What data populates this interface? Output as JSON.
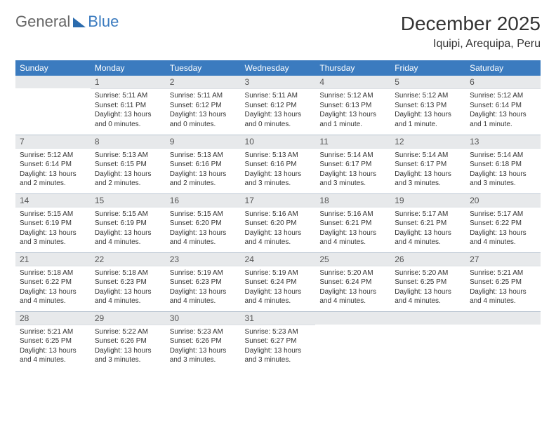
{
  "brand": {
    "part1": "General",
    "part2": "Blue"
  },
  "title": "December 2025",
  "location": "Iquipi, Arequipa, Peru",
  "colors": {
    "header_bg": "#3b7bbf",
    "header_text": "#ffffff",
    "daynum_bg": "#e7e9eb",
    "row_divider": "#b8c4d0",
    "text": "#333333",
    "brand_gray": "#666666",
    "brand_blue": "#3b7bbf",
    "page_bg": "#ffffff"
  },
  "weekdays": [
    "Sunday",
    "Monday",
    "Tuesday",
    "Wednesday",
    "Thursday",
    "Friday",
    "Saturday"
  ],
  "weeks": [
    [
      null,
      {
        "n": "1",
        "sr": "5:11 AM",
        "ss": "6:11 PM",
        "dl": "13 hours and 0 minutes."
      },
      {
        "n": "2",
        "sr": "5:11 AM",
        "ss": "6:12 PM",
        "dl": "13 hours and 0 minutes."
      },
      {
        "n": "3",
        "sr": "5:11 AM",
        "ss": "6:12 PM",
        "dl": "13 hours and 0 minutes."
      },
      {
        "n": "4",
        "sr": "5:12 AM",
        "ss": "6:13 PM",
        "dl": "13 hours and 1 minute."
      },
      {
        "n": "5",
        "sr": "5:12 AM",
        "ss": "6:13 PM",
        "dl": "13 hours and 1 minute."
      },
      {
        "n": "6",
        "sr": "5:12 AM",
        "ss": "6:14 PM",
        "dl": "13 hours and 1 minute."
      }
    ],
    [
      {
        "n": "7",
        "sr": "5:12 AM",
        "ss": "6:14 PM",
        "dl": "13 hours and 2 minutes."
      },
      {
        "n": "8",
        "sr": "5:13 AM",
        "ss": "6:15 PM",
        "dl": "13 hours and 2 minutes."
      },
      {
        "n": "9",
        "sr": "5:13 AM",
        "ss": "6:16 PM",
        "dl": "13 hours and 2 minutes."
      },
      {
        "n": "10",
        "sr": "5:13 AM",
        "ss": "6:16 PM",
        "dl": "13 hours and 3 minutes."
      },
      {
        "n": "11",
        "sr": "5:14 AM",
        "ss": "6:17 PM",
        "dl": "13 hours and 3 minutes."
      },
      {
        "n": "12",
        "sr": "5:14 AM",
        "ss": "6:17 PM",
        "dl": "13 hours and 3 minutes."
      },
      {
        "n": "13",
        "sr": "5:14 AM",
        "ss": "6:18 PM",
        "dl": "13 hours and 3 minutes."
      }
    ],
    [
      {
        "n": "14",
        "sr": "5:15 AM",
        "ss": "6:19 PM",
        "dl": "13 hours and 3 minutes."
      },
      {
        "n": "15",
        "sr": "5:15 AM",
        "ss": "6:19 PM",
        "dl": "13 hours and 4 minutes."
      },
      {
        "n": "16",
        "sr": "5:15 AM",
        "ss": "6:20 PM",
        "dl": "13 hours and 4 minutes."
      },
      {
        "n": "17",
        "sr": "5:16 AM",
        "ss": "6:20 PM",
        "dl": "13 hours and 4 minutes."
      },
      {
        "n": "18",
        "sr": "5:16 AM",
        "ss": "6:21 PM",
        "dl": "13 hours and 4 minutes."
      },
      {
        "n": "19",
        "sr": "5:17 AM",
        "ss": "6:21 PM",
        "dl": "13 hours and 4 minutes."
      },
      {
        "n": "20",
        "sr": "5:17 AM",
        "ss": "6:22 PM",
        "dl": "13 hours and 4 minutes."
      }
    ],
    [
      {
        "n": "21",
        "sr": "5:18 AM",
        "ss": "6:22 PM",
        "dl": "13 hours and 4 minutes."
      },
      {
        "n": "22",
        "sr": "5:18 AM",
        "ss": "6:23 PM",
        "dl": "13 hours and 4 minutes."
      },
      {
        "n": "23",
        "sr": "5:19 AM",
        "ss": "6:23 PM",
        "dl": "13 hours and 4 minutes."
      },
      {
        "n": "24",
        "sr": "5:19 AM",
        "ss": "6:24 PM",
        "dl": "13 hours and 4 minutes."
      },
      {
        "n": "25",
        "sr": "5:20 AM",
        "ss": "6:24 PM",
        "dl": "13 hours and 4 minutes."
      },
      {
        "n": "26",
        "sr": "5:20 AM",
        "ss": "6:25 PM",
        "dl": "13 hours and 4 minutes."
      },
      {
        "n": "27",
        "sr": "5:21 AM",
        "ss": "6:25 PM",
        "dl": "13 hours and 4 minutes."
      }
    ],
    [
      {
        "n": "28",
        "sr": "5:21 AM",
        "ss": "6:25 PM",
        "dl": "13 hours and 4 minutes."
      },
      {
        "n": "29",
        "sr": "5:22 AM",
        "ss": "6:26 PM",
        "dl": "13 hours and 3 minutes."
      },
      {
        "n": "30",
        "sr": "5:23 AM",
        "ss": "6:26 PM",
        "dl": "13 hours and 3 minutes."
      },
      {
        "n": "31",
        "sr": "5:23 AM",
        "ss": "6:27 PM",
        "dl": "13 hours and 3 minutes."
      },
      null,
      null,
      null
    ]
  ],
  "labels": {
    "sunrise": "Sunrise:",
    "sunset": "Sunset:",
    "daylight": "Daylight:"
  }
}
